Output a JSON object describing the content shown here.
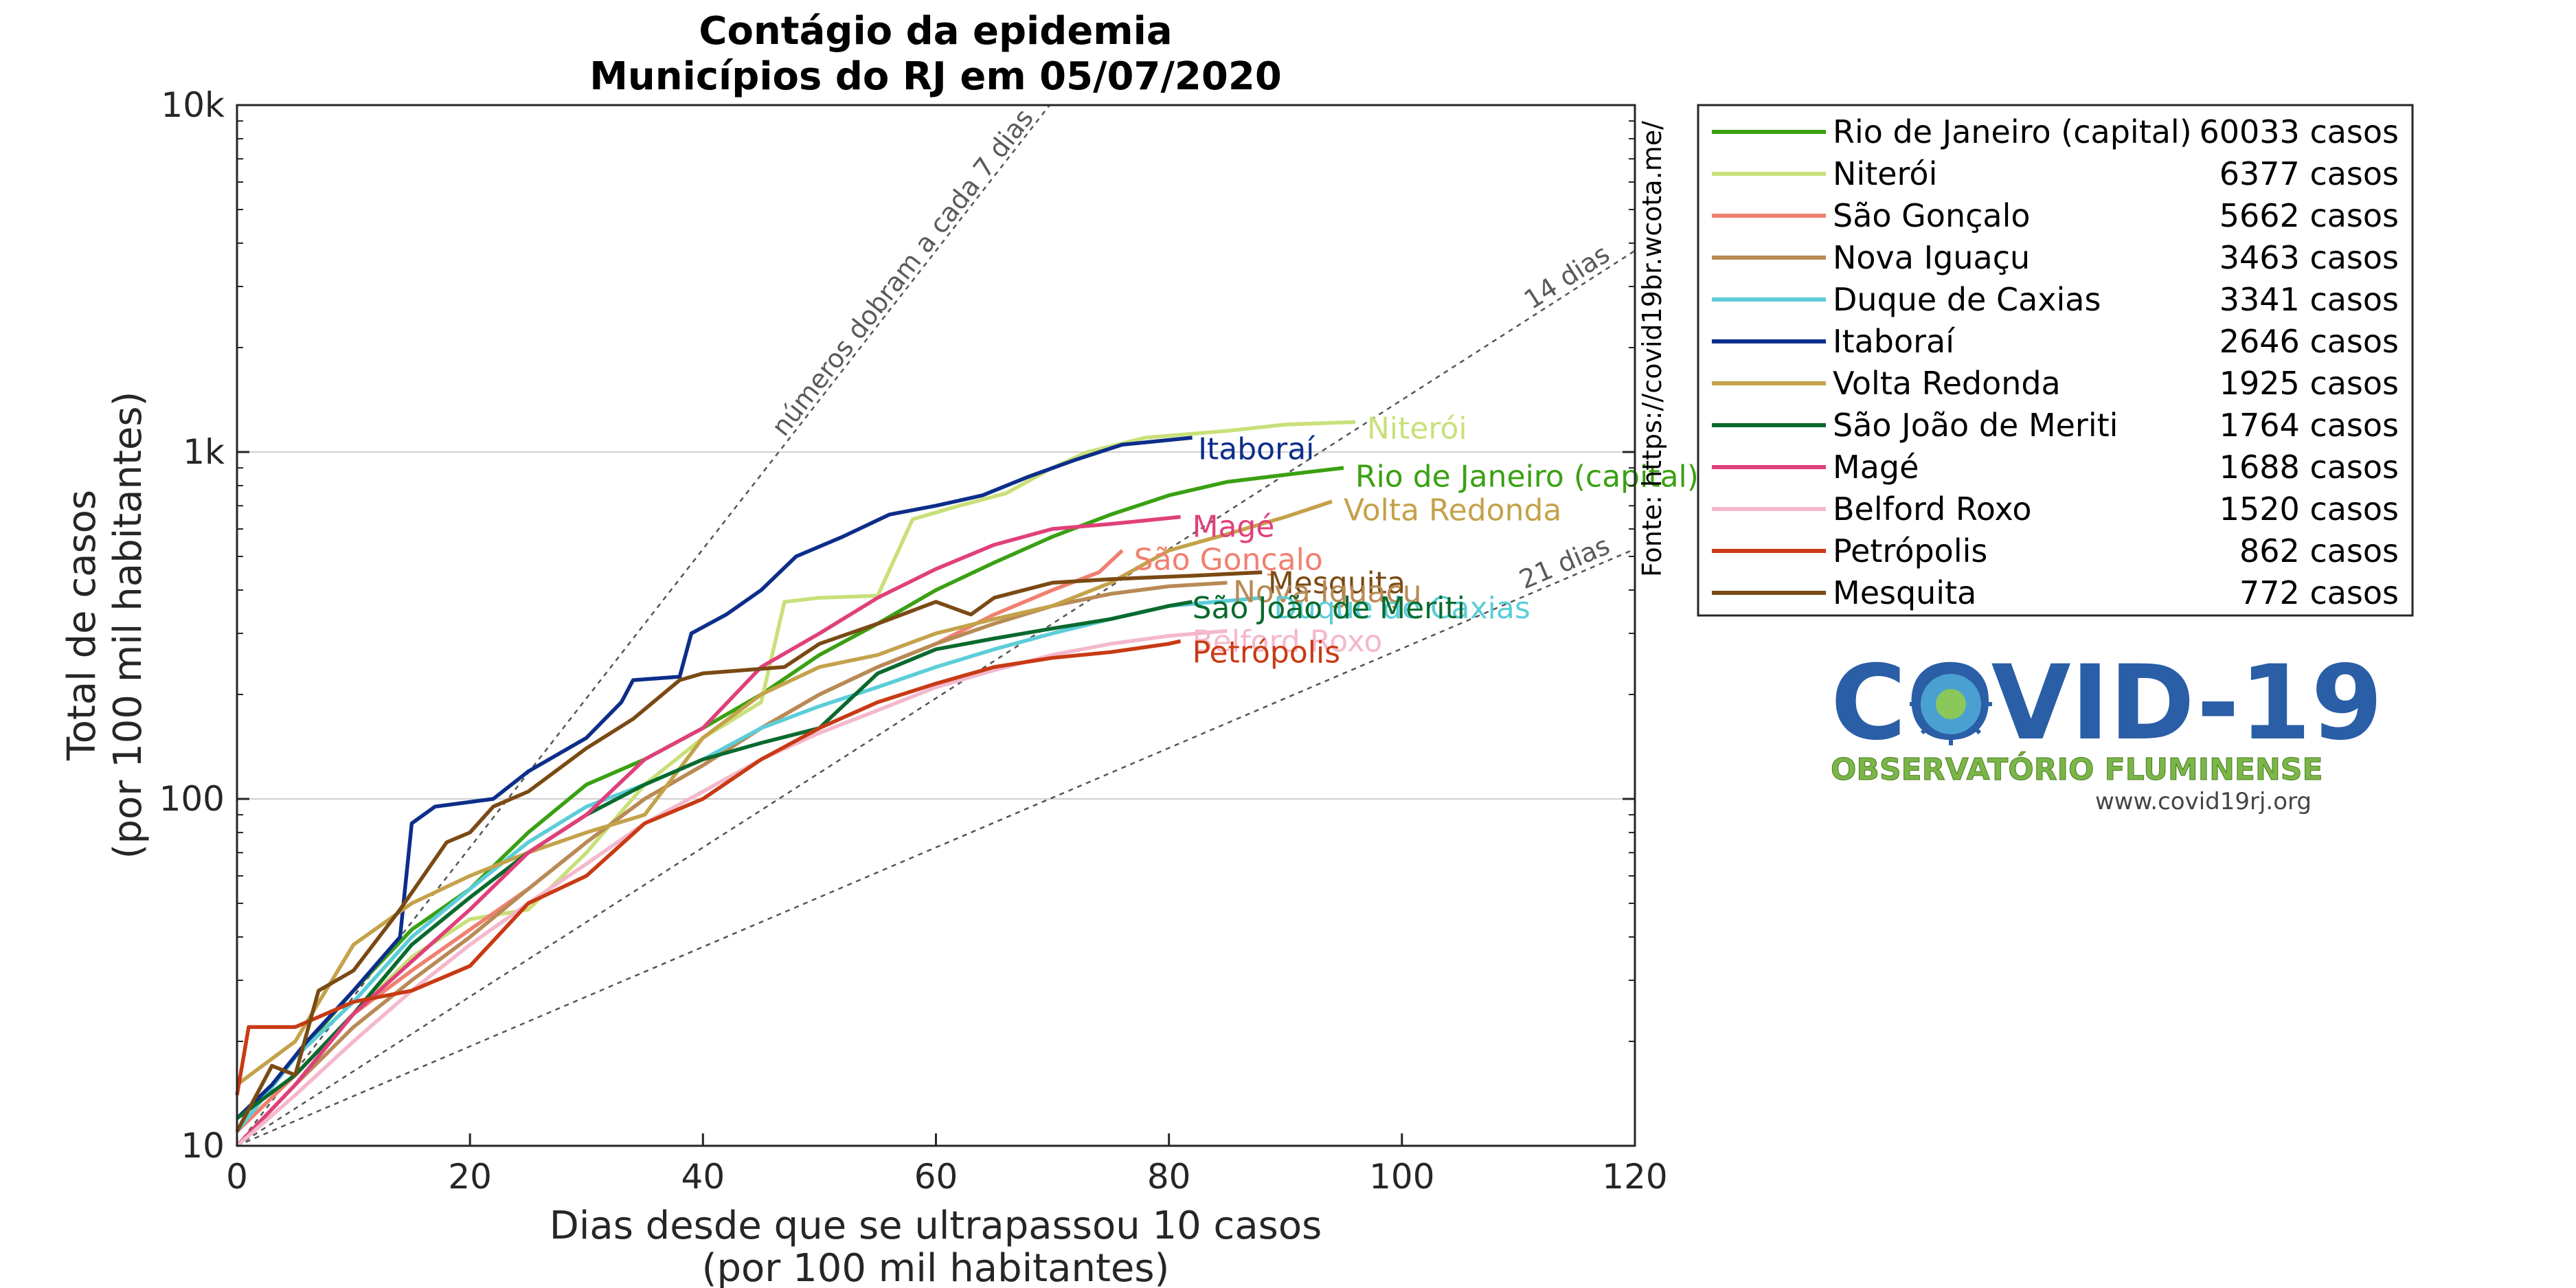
{
  "chart_data": {
    "type": "line",
    "title": "Contágio da epidemia",
    "subtitle": "Municípios do RJ em 05/07/2020",
    "xlabel": "Dias desde que se ultrapassou 10 casos",
    "xlabel2": "(por 100 mil habitantes)",
    "ylabel": "Total de casos",
    "ylabel2": "(por 100 mil habitantes)",
    "xlim": [
      0,
      120
    ],
    "ylim": [
      10,
      10000
    ],
    "yscale": "log",
    "xticks": [
      0,
      20,
      40,
      60,
      80,
      100,
      120
    ],
    "yticks": [
      {
        "v": 10,
        "label": "10"
      },
      {
        "v": 100,
        "label": "100"
      },
      {
        "v": 1000,
        "label": "1k"
      },
      {
        "v": 10000,
        "label": "10k"
      }
    ],
    "grid": "horizontal major",
    "legend_position": "right",
    "source": "Fonte: https://covid19br.wcota.me/",
    "reference_lines": [
      {
        "label": "números dobram a cada 7 dias",
        "doubling_days": 7
      },
      {
        "label": "14 dias",
        "doubling_days": 14
      },
      {
        "label": "21 dias",
        "doubling_days": 21
      }
    ],
    "series": [
      {
        "name": "Rio de Janeiro (capital)",
        "cases": "60033 casos",
        "color": "#3aa012",
        "points": [
          [
            0,
            11
          ],
          [
            5,
            18
          ],
          [
            10,
            28
          ],
          [
            15,
            42
          ],
          [
            20,
            55
          ],
          [
            25,
            80
          ],
          [
            30,
            110
          ],
          [
            35,
            130
          ],
          [
            40,
            160
          ],
          [
            45,
            200
          ],
          [
            50,
            260
          ],
          [
            55,
            320
          ],
          [
            60,
            400
          ],
          [
            65,
            480
          ],
          [
            70,
            570
          ],
          [
            75,
            660
          ],
          [
            80,
            750
          ],
          [
            85,
            820
          ],
          [
            90,
            860
          ],
          [
            95,
            900
          ]
        ]
      },
      {
        "name": "Niterói",
        "cases": "6377 casos",
        "color": "#c9e07a",
        "points": [
          [
            0,
            11
          ],
          [
            5,
            16
          ],
          [
            10,
            24
          ],
          [
            15,
            35
          ],
          [
            20,
            45
          ],
          [
            25,
            48
          ],
          [
            30,
            70
          ],
          [
            35,
            110
          ],
          [
            40,
            150
          ],
          [
            45,
            190
          ],
          [
            47,
            370
          ],
          [
            50,
            380
          ],
          [
            55,
            385
          ],
          [
            58,
            640
          ],
          [
            62,
            700
          ],
          [
            66,
            760
          ],
          [
            70,
            900
          ],
          [
            73,
            1000
          ],
          [
            78,
            1100
          ],
          [
            85,
            1150
          ],
          [
            90,
            1200
          ],
          [
            96,
            1220
          ]
        ]
      },
      {
        "name": "São Gonçalo",
        "cases": "5662 casos",
        "color": "#f08070",
        "points": [
          [
            0,
            11
          ],
          [
            5,
            16
          ],
          [
            10,
            24
          ],
          [
            15,
            32
          ],
          [
            20,
            42
          ],
          [
            25,
            55
          ],
          [
            30,
            75
          ],
          [
            35,
            100
          ],
          [
            40,
            125
          ],
          [
            45,
            160
          ],
          [
            50,
            200
          ],
          [
            55,
            240
          ],
          [
            60,
            280
          ],
          [
            65,
            340
          ],
          [
            70,
            400
          ],
          [
            74,
            450
          ],
          [
            76,
            520
          ]
        ]
      },
      {
        "name": "Nova Iguaçu",
        "cases": "3463 casos",
        "color": "#b88a55",
        "points": [
          [
            0,
            10
          ],
          [
            5,
            15
          ],
          [
            10,
            22
          ],
          [
            15,
            30
          ],
          [
            20,
            40
          ],
          [
            25,
            55
          ],
          [
            30,
            75
          ],
          [
            35,
            100
          ],
          [
            40,
            125
          ],
          [
            45,
            160
          ],
          [
            50,
            200
          ],
          [
            55,
            240
          ],
          [
            60,
            280
          ],
          [
            65,
            320
          ],
          [
            70,
            360
          ],
          [
            75,
            390
          ],
          [
            80,
            410
          ],
          [
            85,
            420
          ]
        ]
      },
      {
        "name": "Duque de Caxias",
        "cases": "3341 casos",
        "color": "#5ccdd8",
        "points": [
          [
            0,
            11
          ],
          [
            5,
            18
          ],
          [
            10,
            26
          ],
          [
            15,
            40
          ],
          [
            20,
            55
          ],
          [
            25,
            75
          ],
          [
            30,
            95
          ],
          [
            35,
            110
          ],
          [
            40,
            130
          ],
          [
            45,
            160
          ],
          [
            50,
            185
          ],
          [
            55,
            210
          ],
          [
            60,
            240
          ],
          [
            65,
            270
          ],
          [
            70,
            300
          ],
          [
            75,
            330
          ],
          [
            80,
            360
          ],
          [
            88,
            380
          ]
        ]
      },
      {
        "name": "Itaboraí",
        "cases": "2646 casos",
        "color": "#0c2d8a",
        "points": [
          [
            0,
            12
          ],
          [
            3,
            15
          ],
          [
            6,
            20
          ],
          [
            10,
            28
          ],
          [
            14,
            40
          ],
          [
            15,
            85
          ],
          [
            17,
            95
          ],
          [
            22,
            100
          ],
          [
            25,
            120
          ],
          [
            30,
            150
          ],
          [
            33,
            190
          ],
          [
            34,
            220
          ],
          [
            38,
            225
          ],
          [
            39,
            300
          ],
          [
            42,
            340
          ],
          [
            45,
            400
          ],
          [
            48,
            500
          ],
          [
            52,
            570
          ],
          [
            56,
            660
          ],
          [
            60,
            700
          ],
          [
            64,
            750
          ],
          [
            68,
            850
          ],
          [
            72,
            950
          ],
          [
            76,
            1050
          ],
          [
            82,
            1100
          ]
        ]
      },
      {
        "name": "Volta Redonda",
        "cases": "1925 casos",
        "color": "#c4a24a",
        "points": [
          [
            0,
            15
          ],
          [
            5,
            20
          ],
          [
            10,
            38
          ],
          [
            15,
            50
          ],
          [
            20,
            60
          ],
          [
            25,
            70
          ],
          [
            30,
            80
          ],
          [
            35,
            90
          ],
          [
            40,
            150
          ],
          [
            45,
            200
          ],
          [
            50,
            240
          ],
          [
            55,
            260
          ],
          [
            60,
            300
          ],
          [
            65,
            330
          ],
          [
            70,
            360
          ],
          [
            75,
            420
          ],
          [
            80,
            520
          ],
          [
            85,
            580
          ],
          [
            90,
            650
          ],
          [
            94,
            720
          ]
        ]
      },
      {
        "name": "São João de Meriti",
        "cases": "1764 casos",
        "color": "#0a6a2e",
        "points": [
          [
            0,
            12
          ],
          [
            5,
            16
          ],
          [
            10,
            24
          ],
          [
            15,
            38
          ],
          [
            20,
            52
          ],
          [
            25,
            70
          ],
          [
            30,
            90
          ],
          [
            35,
            110
          ],
          [
            40,
            130
          ],
          [
            45,
            145
          ],
          [
            50,
            160
          ],
          [
            55,
            230
          ],
          [
            60,
            270
          ],
          [
            65,
            290
          ],
          [
            70,
            310
          ],
          [
            75,
            330
          ],
          [
            80,
            360
          ],
          [
            82,
            370
          ]
        ]
      },
      {
        "name": "Magé",
        "cases": "1688 casos",
        "color": "#e0407a",
        "points": [
          [
            0,
            10
          ],
          [
            5,
            15
          ],
          [
            10,
            24
          ],
          [
            15,
            34
          ],
          [
            20,
            48
          ],
          [
            25,
            70
          ],
          [
            30,
            90
          ],
          [
            35,
            130
          ],
          [
            40,
            160
          ],
          [
            45,
            240
          ],
          [
            50,
            300
          ],
          [
            55,
            380
          ],
          [
            60,
            460
          ],
          [
            65,
            540
          ],
          [
            70,
            600
          ],
          [
            75,
            620
          ],
          [
            79,
            640
          ],
          [
            81,
            650
          ]
        ]
      },
      {
        "name": "Belford Roxo",
        "cases": "1520 casos",
        "color": "#f4b8cc",
        "points": [
          [
            0,
            10
          ],
          [
            5,
            14
          ],
          [
            10,
            20
          ],
          [
            15,
            28
          ],
          [
            20,
            38
          ],
          [
            25,
            50
          ],
          [
            30,
            65
          ],
          [
            35,
            85
          ],
          [
            40,
            105
          ],
          [
            45,
            130
          ],
          [
            50,
            155
          ],
          [
            55,
            180
          ],
          [
            60,
            210
          ],
          [
            65,
            235
          ],
          [
            70,
            260
          ],
          [
            75,
            280
          ],
          [
            80,
            295
          ],
          [
            85,
            305
          ]
        ]
      },
      {
        "name": "Petrópolis",
        "cases": "862 casos",
        "color": "#c83a14",
        "points": [
          [
            0,
            14
          ],
          [
            1,
            22
          ],
          [
            5,
            22
          ],
          [
            10,
            26
          ],
          [
            15,
            28
          ],
          [
            20,
            33
          ],
          [
            25,
            50
          ],
          [
            30,
            60
          ],
          [
            35,
            85
          ],
          [
            40,
            100
          ],
          [
            45,
            130
          ],
          [
            50,
            160
          ],
          [
            55,
            190
          ],
          [
            60,
            215
          ],
          [
            65,
            240
          ],
          [
            70,
            255
          ],
          [
            75,
            265
          ],
          [
            80,
            280
          ],
          [
            81,
            285
          ]
        ]
      },
      {
        "name": "Mesquita",
        "cases": "772 casos",
        "color": "#7a4a14",
        "points": [
          [
            0,
            11
          ],
          [
            3,
            17
          ],
          [
            5,
            16
          ],
          [
            7,
            28
          ],
          [
            10,
            32
          ],
          [
            14,
            48
          ],
          [
            18,
            75
          ],
          [
            20,
            80
          ],
          [
            22,
            95
          ],
          [
            25,
            105
          ],
          [
            30,
            140
          ],
          [
            34,
            170
          ],
          [
            38,
            220
          ],
          [
            40,
            230
          ],
          [
            47,
            240
          ],
          [
            50,
            280
          ],
          [
            55,
            320
          ],
          [
            60,
            370
          ],
          [
            63,
            340
          ],
          [
            65,
            380
          ],
          [
            70,
            420
          ],
          [
            75,
            430
          ],
          [
            82,
            440
          ],
          [
            88,
            450
          ]
        ]
      }
    ],
    "end_labels": [
      {
        "name": "Itaboraí",
        "x": 82.5,
        "y": 1020,
        "color": "#0c2d8a"
      },
      {
        "name": "Niterói",
        "x": 97,
        "y": 1170,
        "color": "#c9e07a"
      },
      {
        "name": "Rio de Janeiro (capital)",
        "x": 96,
        "y": 850,
        "color": "#3aa012"
      },
      {
        "name": "Volta Redonda",
        "x": 95,
        "y": 680,
        "color": "#c4a24a"
      },
      {
        "name": "Magé",
        "x": 82,
        "y": 610,
        "color": "#e0407a"
      },
      {
        "name": "São Gonçalo",
        "x": 77,
        "y": 490,
        "color": "#f08070"
      },
      {
        "name": "Mesquita",
        "x": 88.5,
        "y": 420,
        "color": "#7a4a14"
      },
      {
        "name": "Nova Iguaçu",
        "x": 85.5,
        "y": 395,
        "color": "#b88a55"
      },
      {
        "name": "Duque de Caxias",
        "x": 89,
        "y": 355,
        "color": "#5ccdd8"
      },
      {
        "name": "São João de Meriti",
        "x": 82,
        "y": 355,
        "color": "#0a6a2e"
      },
      {
        "name": "Belford Roxo",
        "x": 82,
        "y": 285,
        "color": "#f4b8cc"
      },
      {
        "name": "Petrópolis",
        "x": 82,
        "y": 265,
        "color": "#c83a14"
      }
    ]
  },
  "logo": {
    "main": "COVID-19",
    "sub": "OBSERVATÓRIO FLUMINENSE",
    "url": "www.covid19rj.org"
  }
}
